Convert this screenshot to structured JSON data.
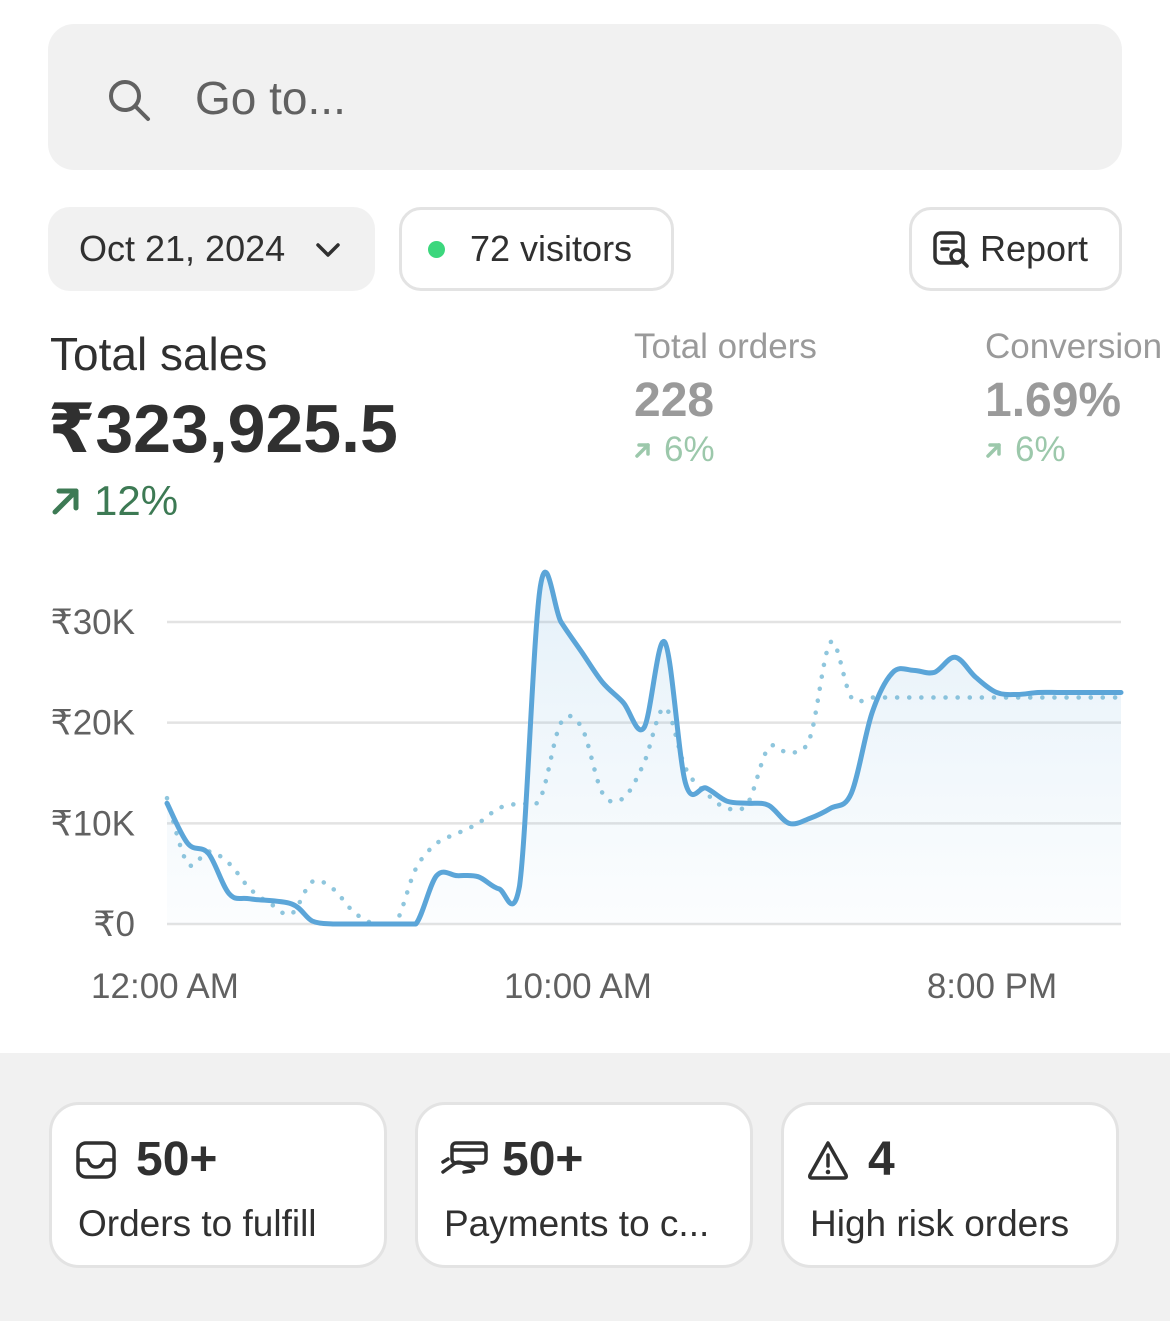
{
  "search": {
    "placeholder": "Go to...",
    "icon": "search-icon"
  },
  "filters": {
    "date_label": "Oct 21, 2024",
    "visitors_label": "72 visitors",
    "report_label": "Report",
    "live_dot_color": "#3cd77d"
  },
  "metrics": {
    "total_sales": {
      "label": "Total sales",
      "value": "₹323,925.5",
      "delta": "12%"
    },
    "total_orders": {
      "label": "Total orders",
      "value": "228",
      "delta": "6%"
    },
    "conversion": {
      "label": "Conversion",
      "value": "1.69%",
      "delta": "6%"
    }
  },
  "chart_data": {
    "type": "line",
    "xlabel": "",
    "ylabel": "",
    "ylim": [
      0,
      30000
    ],
    "y_ticks": [
      {
        "value": 30000,
        "label": "₹30K"
      },
      {
        "value": 20000,
        "label": "₹20K"
      },
      {
        "value": 10000,
        "label": "₹10K"
      },
      {
        "value": 0,
        "label": "₹0"
      }
    ],
    "x_ticks": [
      {
        "hour": 0,
        "label": "12:00 AM"
      },
      {
        "hour": 10,
        "label": "10:00 AM"
      },
      {
        "hour": 20,
        "label": "8:00 PM"
      }
    ],
    "xlim": [
      0,
      23
    ],
    "grid": true,
    "series": [
      {
        "style": "solid",
        "color": "#5ba5d8",
        "x": [
          0,
          0.5,
          1,
          1.5,
          2,
          3,
          3.5,
          4,
          4.5,
          5,
          5.5,
          6,
          6.5,
          7,
          7.5,
          8,
          8.5,
          9,
          9.5,
          10,
          10.5,
          11,
          11.5,
          12,
          12.5,
          13,
          13.5,
          14,
          14.5,
          15,
          15.5,
          16,
          16.5,
          17,
          17.5,
          18,
          18.5,
          19,
          19.5,
          20,
          20.5,
          21,
          21.5,
          22,
          22.5,
          23
        ],
        "y": [
          12000,
          8000,
          7000,
          3000,
          2500,
          2000,
          300,
          0,
          0,
          0,
          0,
          0,
          4800,
          4800,
          4700,
          3500,
          3800,
          33500,
          30000,
          27000,
          24000,
          22000,
          19500,
          28000,
          14000,
          13500,
          12200,
          12000,
          11800,
          10000,
          10500,
          11500,
          13000,
          21000,
          25000,
          25200,
          25000,
          26500,
          24500,
          23000,
          22800,
          23000,
          23000,
          23000,
          23000,
          23000
        ]
      },
      {
        "style": "dotted",
        "color": "#8fc6dd",
        "x": [
          0,
          0.5,
          1,
          1.5,
          2,
          2.5,
          3,
          3.5,
          4,
          4.5,
          5,
          5.5,
          6,
          6.5,
          7,
          7.5,
          8,
          8.5,
          9,
          9.5,
          10,
          10.5,
          11,
          11.5,
          12,
          12.5,
          13,
          13.5,
          14,
          14.5,
          15,
          15.5,
          16,
          16.5,
          17,
          17.5,
          18,
          18.5,
          19,
          19.5,
          20,
          20.5,
          21,
          21.5,
          22,
          22.5,
          23
        ],
        "y": [
          12500,
          6000,
          7200,
          6000,
          3500,
          2000,
          1000,
          4200,
          3500,
          1200,
          0,
          0,
          5500,
          8000,
          9000,
          10000,
          11500,
          12000,
          12500,
          20000,
          19500,
          13000,
          12500,
          16000,
          21500,
          15500,
          13000,
          11500,
          12000,
          17500,
          17000,
          18500,
          28000,
          22500,
          22500,
          22500,
          22500,
          22500,
          22500,
          22500,
          22500,
          22500,
          22500,
          22500,
          22500,
          22500,
          22500
        ]
      }
    ]
  },
  "cards": [
    {
      "value": "50+",
      "label": "Orders to fulfill",
      "icon": "inbox-icon"
    },
    {
      "value": "50+",
      "label": "Payments to c...",
      "icon": "payment-hand-icon"
    },
    {
      "value": "4",
      "label": "High risk orders",
      "icon": "warning-icon"
    }
  ]
}
